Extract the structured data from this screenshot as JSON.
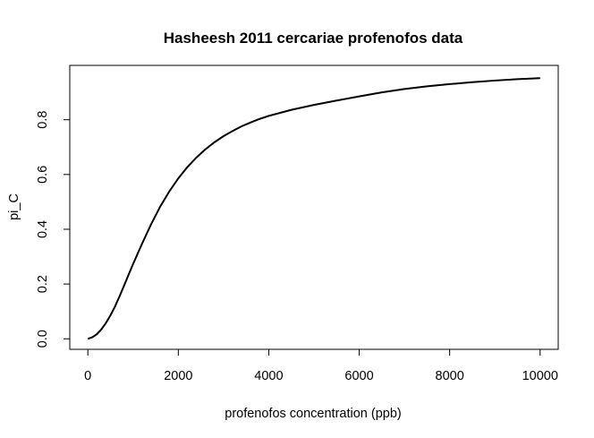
{
  "chart_data": {
    "type": "line",
    "title": "Hasheesh 2011 cercariae profenofos data",
    "xlabel": "profenofos concentration (ppb)",
    "ylabel": "pi_C",
    "xlim": [
      -400,
      10400
    ],
    "ylim": [
      -0.0384,
      0.9984
    ],
    "x_ticks": [
      0,
      2000,
      4000,
      6000,
      8000,
      10000
    ],
    "x_tick_labels": [
      "0",
      "2000",
      "4000",
      "6000",
      "8000",
      "10000"
    ],
    "y_ticks": [
      0.0,
      0.2,
      0.4,
      0.6,
      0.8
    ],
    "y_tick_labels": [
      "0.0",
      "0.2",
      "0.4",
      "0.6",
      "0.8"
    ],
    "grid": false,
    "legend": "none",
    "line_color": "#000000",
    "series": [
      {
        "x": [
          0,
          100,
          200,
          300,
          400,
          500,
          600,
          700,
          800,
          900,
          1000,
          1200,
          1400,
          1600,
          1800,
          2000,
          2200,
          2400,
          2600,
          2800,
          3000,
          3200,
          3400,
          3600,
          3800,
          4000,
          4500,
          5000,
          5500,
          6000,
          6500,
          7000,
          7500,
          8000,
          8500,
          9000,
          9500,
          10000
        ],
        "y": [
          0.0,
          0.006,
          0.017,
          0.035,
          0.058,
          0.086,
          0.118,
          0.155,
          0.194,
          0.234,
          0.273,
          0.348,
          0.419,
          0.483,
          0.538,
          0.586,
          0.627,
          0.662,
          0.692,
          0.718,
          0.74,
          0.759,
          0.776,
          0.79,
          0.803,
          0.814,
          0.836,
          0.854,
          0.87,
          0.885,
          0.9,
          0.912,
          0.922,
          0.93,
          0.937,
          0.943,
          0.948,
          0.952
        ]
      }
    ]
  }
}
